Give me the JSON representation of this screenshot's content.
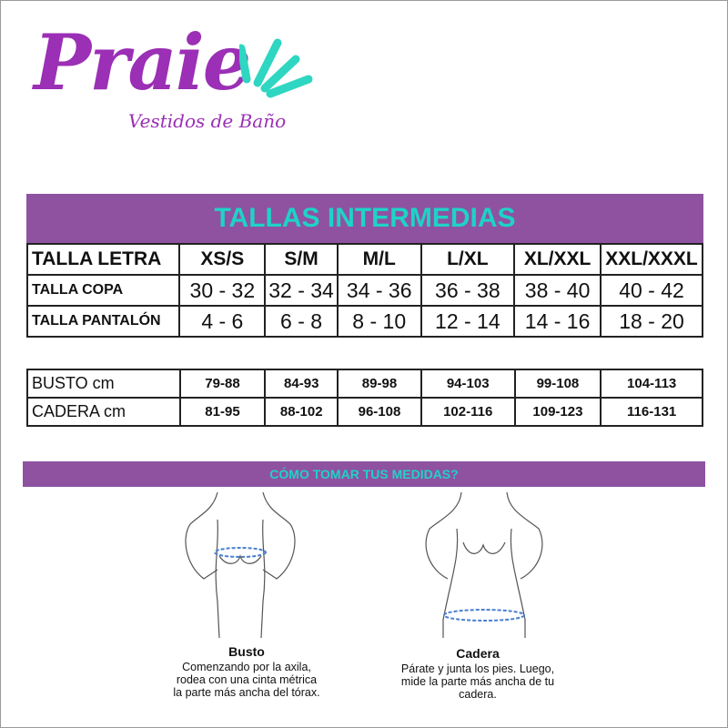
{
  "logo": {
    "brand": "Praie",
    "tagline": "Vestidos de Baño",
    "colors": {
      "purple": "#9b2fb5",
      "teal": "#2fd6c1"
    }
  },
  "title": "TALLAS INTERMEDIAS",
  "sizes_table": {
    "rows": [
      {
        "label": "TALLA LETRA",
        "values": [
          "XS/S",
          "S/M",
          "M/L",
          "L/XL",
          "XL/XXL",
          "XXL/XXXL"
        ]
      },
      {
        "label": "TALLA COPA",
        "values": [
          "30 - 32",
          "32 - 34",
          "34 - 36",
          "36 - 38",
          "38 - 40",
          "40 - 42"
        ]
      },
      {
        "label": "TALLA PANTALÓN",
        "values": [
          "4 - 6",
          "6 - 8",
          "8 - 10",
          "12 - 14",
          "14 - 16",
          "18 - 20"
        ]
      }
    ]
  },
  "measures_table": {
    "rows": [
      {
        "label": "BUSTO cm",
        "values": [
          "79-88",
          "84-93",
          "89-98",
          "94-103",
          "99-108",
          "104-113"
        ]
      },
      {
        "label": "CADERA cm",
        "values": [
          "81-95",
          "88-102",
          "96-108",
          "102-116",
          "109-123",
          "116-131"
        ]
      }
    ]
  },
  "how_to": {
    "title": "CÓMO TOMAR TUS MEDIDAS?",
    "bust": {
      "title": "Busto",
      "lines": [
        "Comenzando por la axila,",
        "rodea con una cinta métrica",
        "la parte más ancha del tórax."
      ]
    },
    "hip": {
      "title": "Cadera",
      "lines": [
        "Párate y junta los pies. Luego,",
        "mide la parte más ancha de tu",
        "cadera."
      ]
    }
  },
  "colors": {
    "header_bg": "#8e52a1",
    "header_text": "#1ed3c6",
    "tape": "#4a7fd0"
  }
}
